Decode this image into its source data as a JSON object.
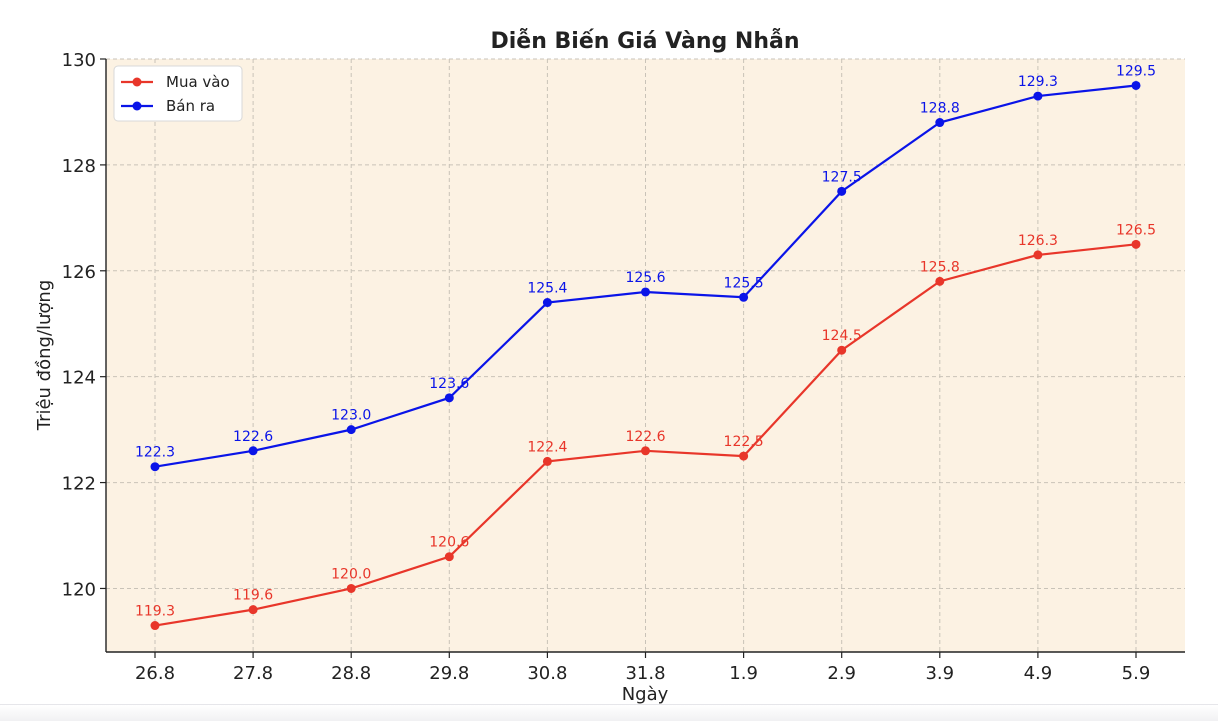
{
  "chart_data": {
    "type": "line",
    "title": "Diễn Biến Giá Vàng Nhẫn",
    "xlabel": "Ngày",
    "ylabel": "Triệu đồng/lượng",
    "categories": [
      "26.8",
      "27.8",
      "28.8",
      "29.8",
      "30.8",
      "31.8",
      "1.9",
      "2.9",
      "3.9",
      "4.9",
      "5.9"
    ],
    "series": [
      {
        "name": "Mua vào",
        "color": "#e8362a",
        "values": [
          119.3,
          119.6,
          120.0,
          120.6,
          122.4,
          122.6,
          122.5,
          124.5,
          125.8,
          126.3,
          126.5
        ],
        "data_labels": [
          "119.3",
          "119.6",
          "120.0",
          "120.6",
          "122.4",
          "122.6",
          "122.5",
          "124.5",
          "125.8",
          "126.3",
          "126.5"
        ]
      },
      {
        "name": "Bán ra",
        "color": "#0a14e8",
        "values": [
          122.3,
          122.6,
          123.0,
          123.6,
          125.4,
          125.6,
          125.5,
          127.5,
          128.8,
          129.3,
          129.5
        ],
        "data_labels": [
          "122.3",
          "122.6",
          "123.0",
          "123.6",
          "125.4",
          "125.6",
          "125.5",
          "127.5",
          "128.8",
          "129.3",
          "129.5"
        ]
      }
    ],
    "ylim": [
      118.8,
      130
    ],
    "yticks": [
      120,
      122,
      124,
      126,
      128,
      130
    ],
    "grid": true,
    "legend": "top-left",
    "plot_background": "#fcf2e3"
  }
}
